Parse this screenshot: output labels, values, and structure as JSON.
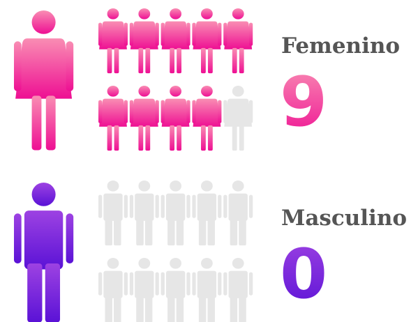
{
  "chart_data": {
    "type": "pictogram",
    "icon_count": 10,
    "empty_color": "#e6e6e6",
    "series": [
      {
        "name": "Femenino",
        "icon": "female",
        "colors": [
          "#f98db3",
          "#ee0f93"
        ],
        "values": [
          9
        ]
      },
      {
        "name": "Masculino",
        "icon": "male",
        "colors": [
          "#9d42e2",
          "#5a12d6"
        ],
        "values": [
          0
        ]
      }
    ]
  }
}
